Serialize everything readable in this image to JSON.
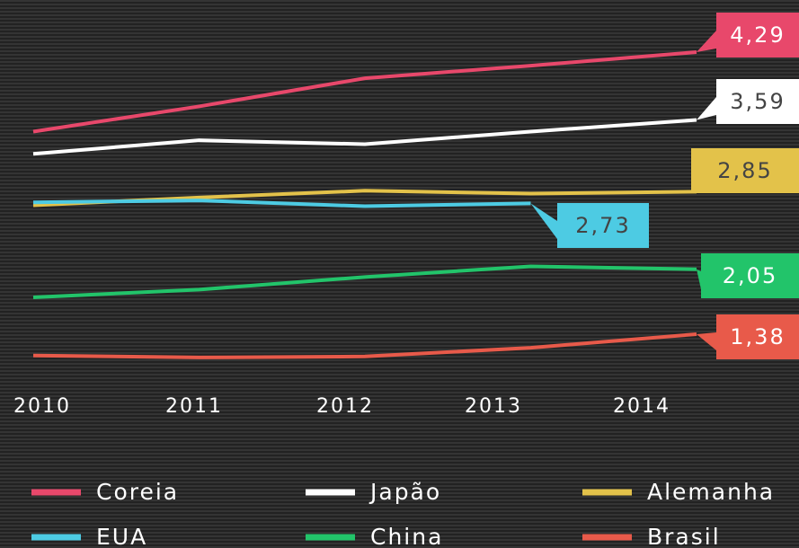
{
  "chart_data": {
    "type": "line",
    "categories": [
      "2010",
      "2011",
      "2012",
      "2013",
      "2014"
    ],
    "series": [
      {
        "name": "Coreia",
        "color": "#e8486b",
        "values": [
          3.47,
          3.73,
          4.02,
          4.15,
          4.29
        ],
        "value_labels": [
          null,
          null,
          null,
          null,
          "4,29"
        ]
      },
      {
        "name": "Japão",
        "color": "#ffffff",
        "values": [
          3.24,
          3.38,
          3.34,
          3.47,
          3.59
        ],
        "value_labels": [
          null,
          null,
          null,
          null,
          "3,59"
        ]
      },
      {
        "name": "Alemanha",
        "color": "#e3c24a",
        "values": [
          2.71,
          2.79,
          2.86,
          2.83,
          2.85
        ],
        "value_labels": [
          null,
          null,
          null,
          null,
          "2,85"
        ]
      },
      {
        "name": "EUA",
        "color": "#4dcbe3",
        "values": [
          2.74,
          2.76,
          2.7,
          2.73,
          null
        ],
        "value_labels": [
          null,
          null,
          null,
          "2,73",
          null
        ]
      },
      {
        "name": "China",
        "color": "#22c46a",
        "values": [
          1.76,
          1.84,
          1.97,
          2.08,
          2.05
        ],
        "value_labels": [
          null,
          null,
          null,
          null,
          "2,05"
        ]
      },
      {
        "name": "Brasil",
        "color": "#e85a4a",
        "values": [
          1.16,
          1.14,
          1.15,
          1.24,
          1.38
        ],
        "value_labels": [
          null,
          null,
          null,
          null,
          "1,38"
        ]
      }
    ]
  }
}
